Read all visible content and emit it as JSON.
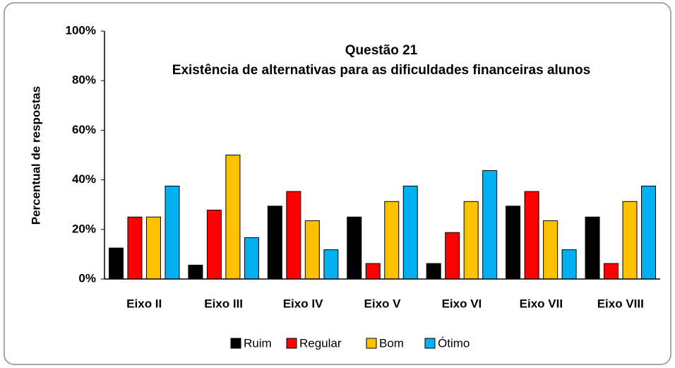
{
  "chart_data": {
    "type": "bar",
    "title": "Questão 21",
    "subtitle": "Existência de alternativas para as dificuldades financeiras alunos",
    "y_label": "Percentual de respostas",
    "categories": [
      "Eixo II",
      "Eixo III",
      "Eixo IV",
      "Eixo V",
      "Eixo VI",
      "Eixo VII",
      "Eixo VIII"
    ],
    "series": [
      {
        "name": "Ruim",
        "color": "#000000",
        "values": [
          12.5,
          5.6,
          29.4,
          25,
          6.25,
          29.4,
          25
        ]
      },
      {
        "name": "Regular",
        "color": "#ff0000",
        "values": [
          25,
          27.8,
          35.3,
          6.25,
          18.75,
          35.3,
          6.25
        ]
      },
      {
        "name": "Bom",
        "color": "#ffc000",
        "values": [
          25,
          50,
          23.5,
          31.25,
          31.25,
          23.5,
          31.25
        ]
      },
      {
        "name": "Ótimo",
        "color": "#00b0f0",
        "values": [
          37.5,
          16.7,
          11.8,
          37.5,
          43.75,
          11.8,
          37.5
        ]
      }
    ],
    "ylim": [
      0,
      100
    ],
    "yticks": [
      {
        "value": 0,
        "label": "0%"
      },
      {
        "value": 20,
        "label": "20%"
      },
      {
        "value": 40,
        "label": "40%"
      },
      {
        "value": 60,
        "label": "60%"
      },
      {
        "value": 80,
        "label": "80%"
      },
      {
        "value": 100,
        "label": "100%"
      }
    ],
    "grid": false,
    "legend": "bottom"
  }
}
